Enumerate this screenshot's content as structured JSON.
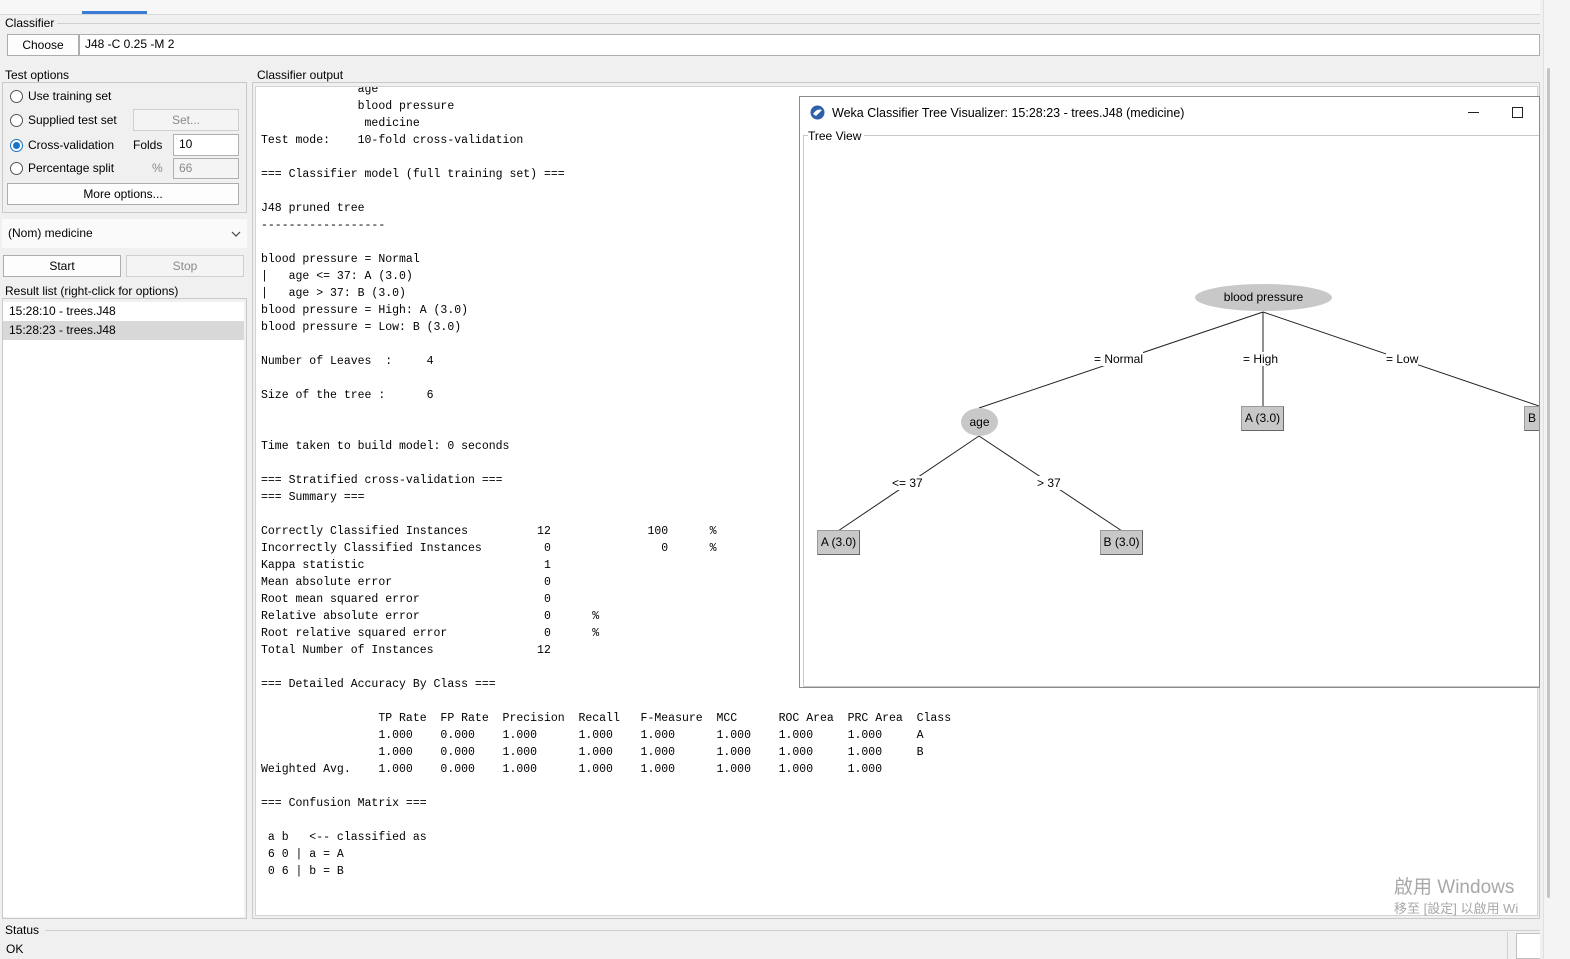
{
  "classifier": {
    "section_label": "Classifier",
    "choose_label": "Choose",
    "command": "J48 -C 0.25 -M 2"
  },
  "test_options": {
    "section_label": "Test options",
    "use_training_set": "Use training set",
    "supplied_test_set": "Supplied test set",
    "set_button": "Set...",
    "cross_validation": "Cross-validation",
    "folds_label": "Folds",
    "folds_value": "10",
    "percentage_split": "Percentage split",
    "percent_symbol": "%",
    "percentage_value": "66",
    "more_options": "More options..."
  },
  "class_attribute": "(Nom)  medicine",
  "start_label": "Start",
  "stop_label": "Stop",
  "result_list": {
    "label": "Result list (right-click for options)",
    "items": [
      "15:28:10 - trees.J48",
      "15:28:23 - trees.J48"
    ]
  },
  "output": {
    "label": "Classifier output",
    "text": "              age\n              blood pressure\n               medicine\nTest mode:    10-fold cross-validation\n\n=== Classifier model (full training set) ===\n\nJ48 pruned tree\n------------------\n\nblood pressure = Normal\n|   age <= 37: A (3.0)\n|   age > 37: B (3.0)\nblood pressure = High: A (3.0)\nblood pressure = Low: B (3.0)\n\nNumber of Leaves  :     4\n\nSize of the tree :      6\n\n\nTime taken to build model: 0 seconds\n\n=== Stratified cross-validation ===\n=== Summary ===\n\nCorrectly Classified Instances          12              100      %\nIncorrectly Classified Instances         0                0      %\nKappa statistic                          1\nMean absolute error                      0\nRoot mean squared error                  0\nRelative absolute error                  0      %\nRoot relative squared error              0      %\nTotal Number of Instances               12\n\n=== Detailed Accuracy By Class ===\n\n                 TP Rate  FP Rate  Precision  Recall   F-Measure  MCC      ROC Area  PRC Area  Class\n                 1.000    0.000    1.000      1.000    1.000      1.000    1.000     1.000     A\n                 1.000    0.000    1.000      1.000    1.000      1.000    1.000     1.000     B\nWeighted Avg.    1.000    0.000    1.000      1.000    1.000      1.000    1.000     1.000\n\n=== Confusion Matrix ===\n\n a b   <-- classified as\n 6 0 | a = A\n 0 6 | b = B"
  },
  "visualizer": {
    "title": "Weka Classifier Tree Visualizer: 15:28:23 - trees.J48 (medicine)",
    "tree_view_label": "Tree View",
    "nodes": {
      "root": "blood pressure",
      "age": "age",
      "leaf_a_high": "A (3.0)",
      "leaf_b_low": "B",
      "leaf_a_young": "A (3.0)",
      "leaf_b_old": "B (3.0)"
    },
    "edges": {
      "normal": "= Normal",
      "high": "= High",
      "low": "= Low",
      "le37": "<= 37",
      "gt37": "> 37"
    }
  },
  "status": {
    "label": "Status",
    "text": "OK"
  },
  "watermark": {
    "line1": "啟用 Windows",
    "line2": "移至 [設定] 以啟用 Wi"
  }
}
